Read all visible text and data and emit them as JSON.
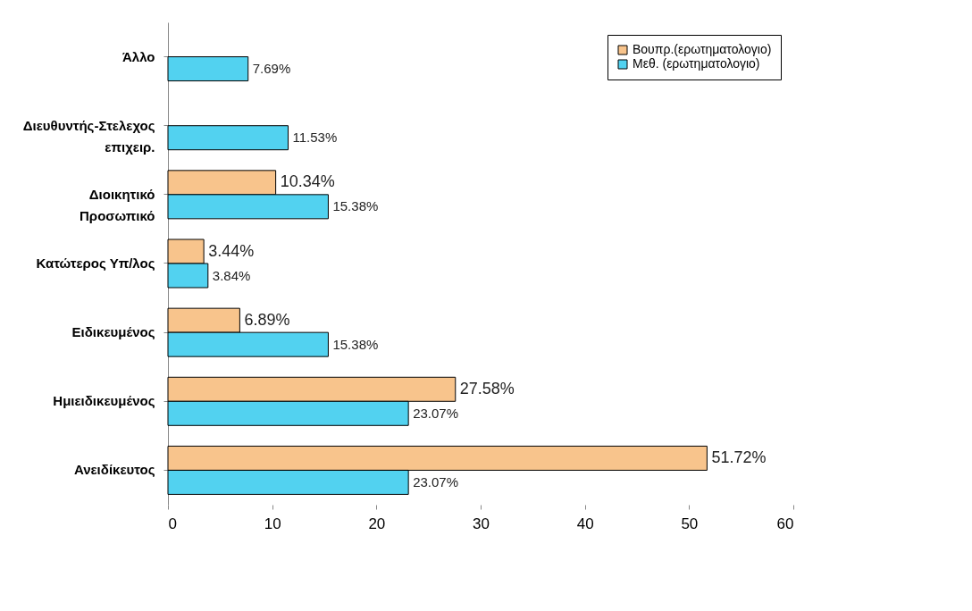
{
  "chart_data": {
    "type": "bar",
    "orientation": "horizontal",
    "categories": [
      "Άλλο",
      "Διευθυντής-Στελεχος\nεπιχειρ.",
      "Διοικητικό\nΠροσωπικό",
      "Κατώτερος Υπ/λος",
      "Ειδικευμένος",
      "Ημιειδικευμένος",
      "Ανειδίκευτος"
    ],
    "series": [
      {
        "name": "Βουπρ.(ερωτηματολογιο)",
        "color": "#f8c48c",
        "values": [
          null,
          null,
          10.34,
          3.44,
          6.89,
          27.58,
          51.72
        ],
        "value_labels": [
          null,
          null,
          "10.34%",
          "3.44%",
          "6.89%",
          "27.58%",
          "51.72%"
        ]
      },
      {
        "name": "Μεθ. (ερωτηματολογιο)",
        "color": "#52d2f0",
        "values": [
          7.69,
          11.53,
          15.38,
          3.84,
          15.38,
          23.07,
          23.07
        ],
        "value_labels": [
          "7.69%",
          "11.53%",
          "15.38%",
          "3.84%",
          "15.38%",
          "23.07%",
          "23.07%"
        ]
      }
    ],
    "xlim": [
      0,
      60
    ],
    "xticks": [
      0,
      10,
      20,
      30,
      40,
      50,
      60
    ],
    "grid": false,
    "legend": "top right"
  }
}
